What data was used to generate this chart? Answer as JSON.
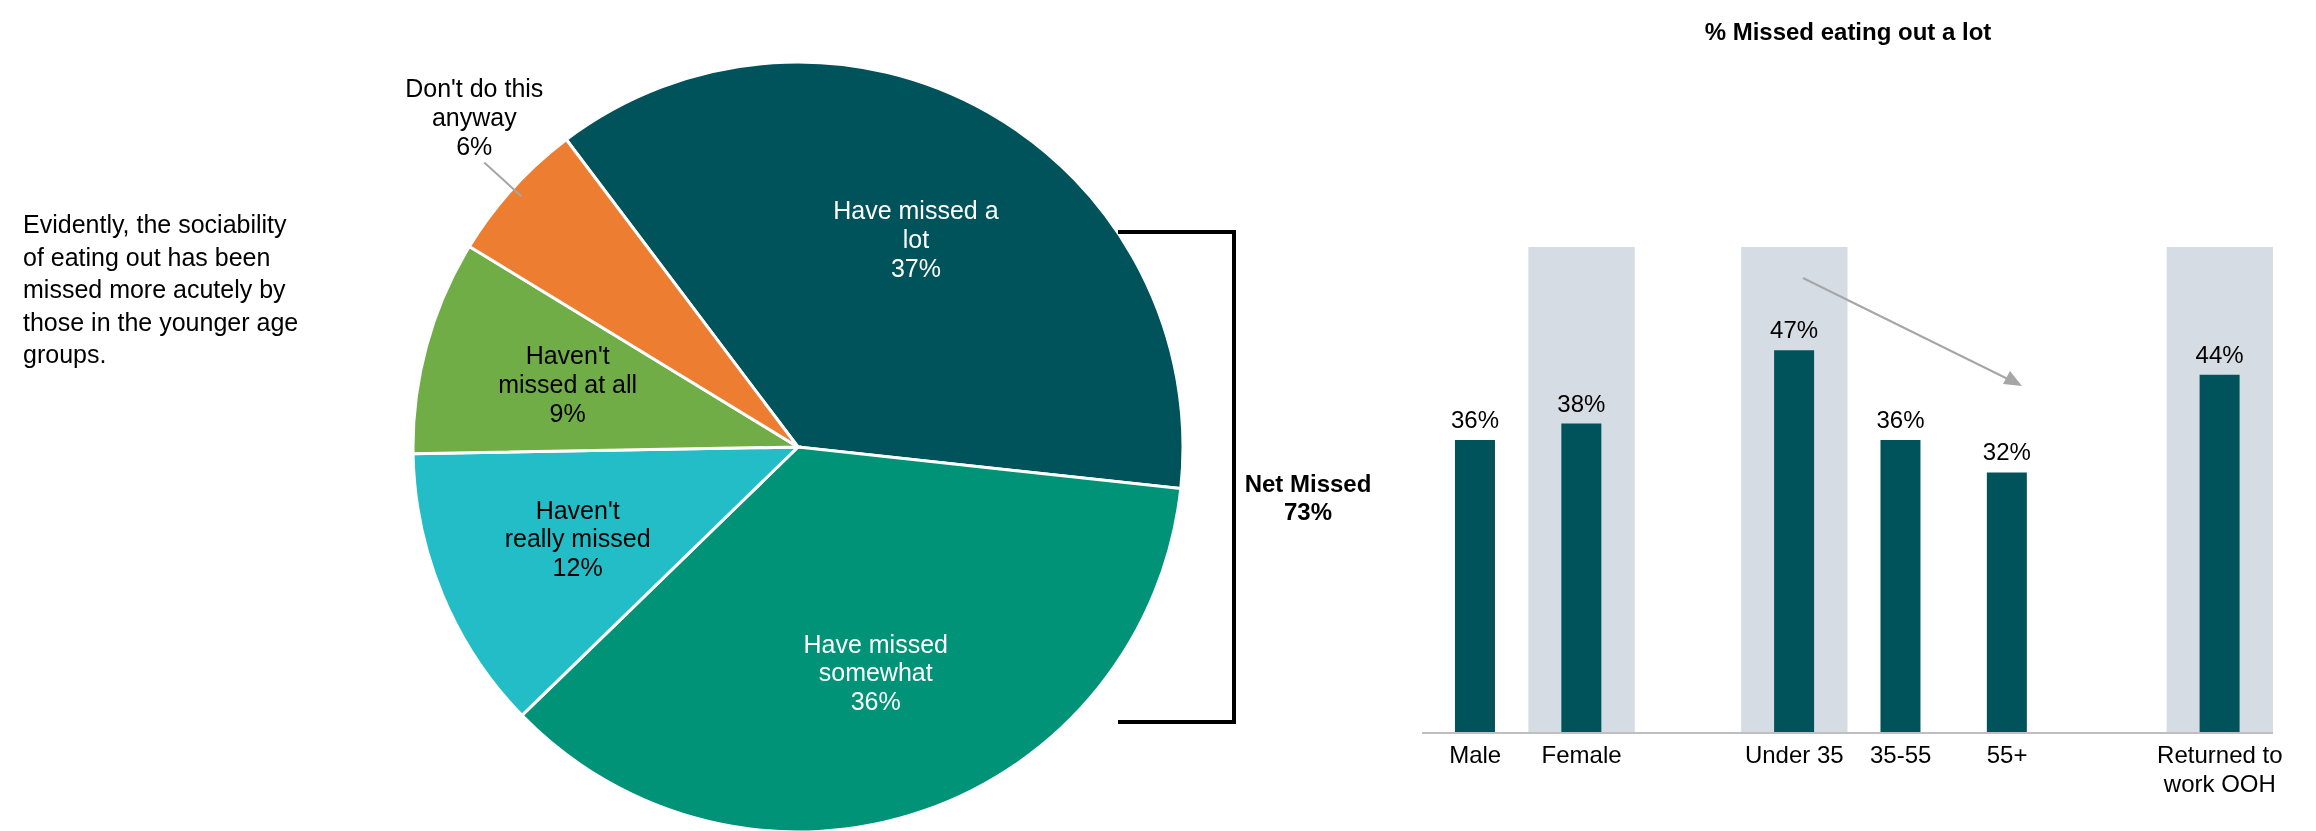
{
  "chart_data": [
    {
      "type": "other",
      "annotations": [
        "Evidently, the sociability of eating out has been missed more acutely by those in the younger age groups."
      ]
    },
    {
      "type": "pie",
      "categories": [
        "Have missed a lot",
        "Have missed somewhat",
        "Haven't really missed",
        "Haven't missed at all",
        "Don't do this anyway"
      ],
      "values": [
        37,
        36,
        12,
        9,
        6
      ],
      "value_labels": [
        "37%",
        "36%",
        "12%",
        "9%",
        "6%"
      ],
      "colors": [
        "#00535a",
        "#009378",
        "#22bdc6",
        "#70ad47",
        "#ed7d31"
      ],
      "annotations": [
        "Net Missed 73%"
      ]
    },
    {
      "type": "bar",
      "title": "% Missed eating out a lot",
      "categories": [
        "Male",
        "Female",
        null,
        "Under 35",
        "35-55",
        "55+",
        null,
        "Returned to work OOH"
      ],
      "values": [
        36,
        38,
        null,
        47,
        36,
        32,
        null,
        44
      ],
      "value_labels": [
        "36%",
        "38%",
        null,
        "47%",
        "36%",
        "32%",
        null,
        "44%"
      ],
      "color": "#00535a",
      "bands": [
        {
          "axis": "x",
          "from": "Female",
          "to": "Female",
          "color": "#d6dce4"
        },
        {
          "axis": "x",
          "from": "Under 35",
          "to": "Under 35",
          "color": "#d6dce4"
        },
        {
          "axis": "x",
          "from": "Returned to work OOH",
          "to": "Returned to work OOH",
          "color": "#d6dce4"
        }
      ]
    }
  ]
}
